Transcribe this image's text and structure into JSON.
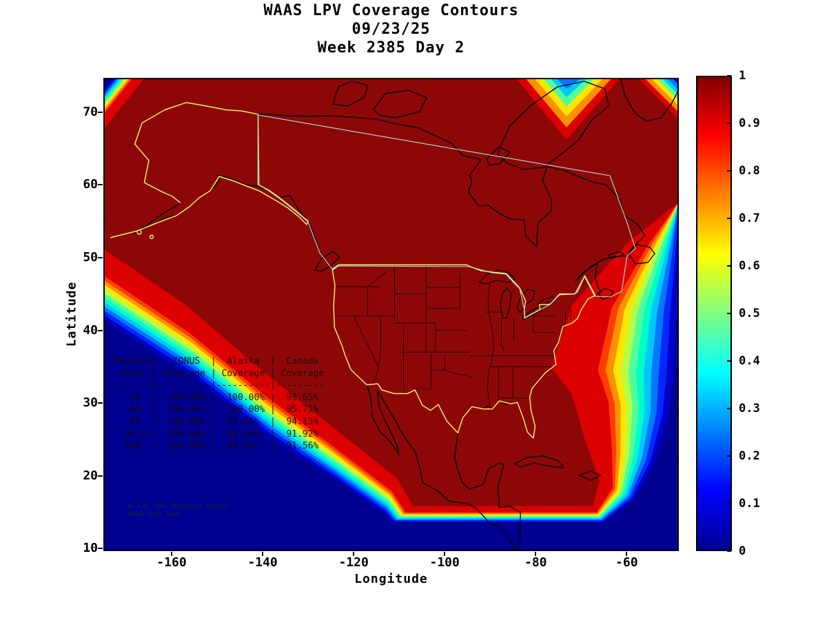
{
  "title": {
    "line1": "WAAS LPV Coverage Contours",
    "line2": "09/23/25",
    "line3": "Week 2385 Day 2"
  },
  "axes": {
    "x_label": "Longitude",
    "y_label": "Latitude"
  },
  "coverage_table": {
    "col_headers_top": [
      "Percent",
      "CONUS",
      "Alaska",
      "Canada"
    ],
    "col_headers_bottom": [
      "Avail.",
      "Coverage",
      "Coverage",
      "Coverage"
    ],
    "rows": [
      {
        "avail": "95",
        "conus": "100.00%",
        "alaska": "100.00%",
        "canada": "99.65%"
      },
      {
        "avail": "98",
        "conus": "100.00%",
        "alaska": "100.00%",
        "canada": "95.71%"
      },
      {
        "avail": "99",
        "conus": "100.00%",
        "alaska": "99.66%",
        "canada": "94.13%"
      },
      {
        "avail": "99.9",
        "conus": "100.00%",
        "alaska": "99.66%",
        "canada": "91.92%"
      },
      {
        "avail": "100",
        "conus": "100.00%",
        "alaska": "99.66%",
        "canada": "91.56%"
      }
    ]
  },
  "footer": {
    "line1": "W.J.H. FAA Technical Center",
    "line2": "WAAS Test Team"
  },
  "colors": {
    "ocean_low": "#000091",
    "coverage_high": "#8d0707",
    "conus_alaska_outline": "#f2f25c",
    "canada_outline": "#a8e8e0",
    "coastline": "#000000",
    "jet_bands": [
      "#0000c8",
      "#0028ff",
      "#0078ff",
      "#00c8ff",
      "#00ffc8",
      "#50ff9c",
      "#b4ff46",
      "#ffe600",
      "#ff9100",
      "#ff3c00",
      "#dc0000"
    ],
    "colorbar_jet": [
      "#00008f",
      "#0000ff",
      "#00ffff",
      "#80ff80",
      "#ffff00",
      "#ff0000",
      "#800000"
    ]
  },
  "chart_data": {
    "type": "heatmap",
    "title": "WAAS LPV Coverage Contours",
    "subtitle": "09/23/25 - Week 2385 Day 2",
    "xlabel": "Longitude",
    "ylabel": "Latitude",
    "xlim": [
      -175,
      -48.5
    ],
    "ylim": [
      10,
      74.7
    ],
    "x_ticks": [
      -160,
      -140,
      -120,
      -100,
      -80,
      -60
    ],
    "y_ticks": [
      70,
      60,
      50,
      40,
      30,
      20,
      10
    ],
    "colormap": "jet",
    "value_range": [
      0,
      1
    ],
    "colorbar_ticks": [
      1,
      0.9,
      0.8,
      0.7,
      0.6,
      0.5,
      0.4,
      0.3,
      0.2,
      0.1,
      0
    ],
    "legend_position": "right-colorbar",
    "grid": false,
    "description": "Filled contour map of WAAS LPV coverage probability (0 to 1, jet colormap) over North America. Coverage is ~1 (dark red) over CONUS, Alaska and Canada, dropping through rainbow contour bands to 0 (dark blue) over the open Pacific/Atlantic and at the plot edges. CONUS and Alaska are outlined in yellow, Canada in pale cyan, coastlines and state borders in black.",
    "coverage_summary": {
      "columns": [
        "Percent Avail.",
        "CONUS Coverage",
        "Alaska Coverage",
        "Canada Coverage"
      ],
      "rows": [
        [
          "95",
          "100.00%",
          "100.00%",
          "99.65%"
        ],
        [
          "98",
          "100.00%",
          "100.00%",
          "95.71%"
        ],
        [
          "99",
          "100.00%",
          "99.66%",
          "94.13%"
        ],
        [
          "99.9",
          "100.00%",
          "99.66%",
          "91.92%"
        ],
        [
          "100",
          "100.00%",
          "99.66%",
          "91.56%"
        ]
      ]
    }
  }
}
